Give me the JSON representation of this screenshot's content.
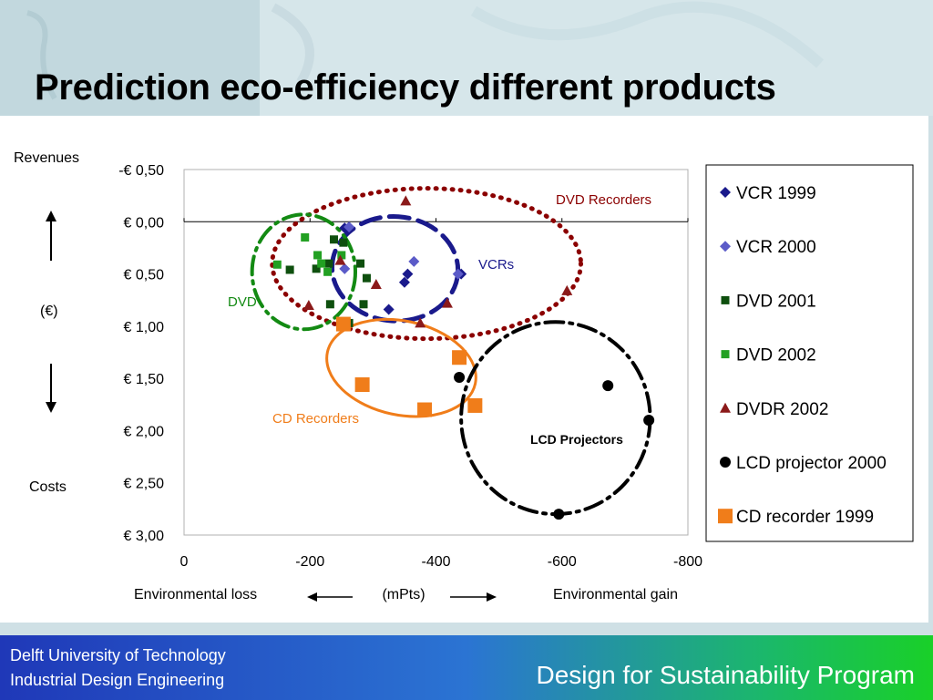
{
  "slide": {
    "title": "Prediction eco-efficiency different products"
  },
  "footer": {
    "line1": "Delft University of Technology",
    "line2": "Industrial Design Engineering",
    "program": "Design for Sustainability Program"
  },
  "colors": {
    "title_bar_bg": "#c9dde4",
    "footer_start": "#1f38b8",
    "footer_end": "#19d028",
    "dvd_recorders": "#8b0000",
    "vcrs": "#1a1a8c",
    "dvd": "#138a13",
    "cd_recorders": "#f07d1a",
    "lcd": "#000000"
  },
  "chart_data": {
    "type": "scatter",
    "ylabel_top": "Revenues",
    "ylabel_mid": "(€)",
    "ylabel_bottom": "Costs",
    "xlabel_left": "Environmental loss",
    "xlabel_mid": "(mPts)",
    "xlabel_right": "Environmental gain",
    "x_ticks": [
      0,
      -200,
      -400,
      -600,
      -800
    ],
    "x_tick_labels": [
      "0",
      "-200",
      "-400",
      "-600",
      "-800"
    ],
    "y_ticks": [
      -0.5,
      0,
      0.5,
      1.0,
      1.5,
      2.0,
      2.5,
      3.0
    ],
    "y_tick_labels": [
      "-€ 0,50",
      "€ 0,00",
      "€ 0,50",
      "€ 1,00",
      "€ 1,50",
      "€ 2,00",
      "€ 2,50",
      "€ 3,00"
    ],
    "xlim": [
      0,
      -800
    ],
    "ylim": [
      -0.5,
      3.0
    ],
    "grid": false,
    "legend_position": "right",
    "series": [
      {
        "name": "VCR 1999",
        "marker": "diamond",
        "color": "#1a1a8c",
        "points": [
          [
            -255,
            0.06
          ],
          [
            -325,
            0.84
          ],
          [
            -355,
            0.5
          ],
          [
            -440,
            0.5
          ],
          [
            -350,
            0.58
          ]
        ]
      },
      {
        "name": "VCR 2000",
        "marker": "diamond",
        "color": "#5b5bc8",
        "points": [
          [
            -262,
            0.05
          ],
          [
            -255,
            0.45
          ],
          [
            -365,
            0.38
          ],
          [
            -435,
            0.5
          ]
        ]
      },
      {
        "name": "DVD 2001",
        "marker": "square-small",
        "color": "#0e4f0e",
        "points": [
          [
            -168,
            0.46
          ],
          [
            -210,
            0.45
          ],
          [
            -230,
            0.4
          ],
          [
            -232,
            0.79
          ],
          [
            -238,
            0.17
          ],
          [
            -253,
            0.2
          ],
          [
            -262,
            0.97
          ],
          [
            -280,
            0.4
          ],
          [
            -285,
            0.79
          ],
          [
            -290,
            0.54
          ]
        ]
      },
      {
        "name": "DVD 2002",
        "marker": "square-small",
        "color": "#22a022",
        "points": [
          [
            -148,
            0.41
          ],
          [
            -192,
            0.15
          ],
          [
            -212,
            0.32
          ],
          [
            -218,
            0.4
          ],
          [
            -228,
            0.48
          ],
          [
            -250,
            0.32
          ]
        ]
      },
      {
        "name": "DVDR 2002",
        "marker": "triangle",
        "color": "#8b1a1a",
        "points": [
          [
            -198,
            0.8
          ],
          [
            -248,
            0.37
          ],
          [
            -305,
            0.6
          ],
          [
            -352,
            -0.2
          ],
          [
            -375,
            0.97
          ],
          [
            -418,
            0.78
          ],
          [
            -608,
            0.66
          ]
        ]
      },
      {
        "name": "LCD projector 2000",
        "marker": "circle",
        "color": "#000000",
        "points": [
          [
            -437,
            1.49
          ],
          [
            -673,
            1.57
          ],
          [
            -738,
            1.9
          ],
          [
            -595,
            2.8
          ]
        ]
      },
      {
        "name": "CD recorder 1999",
        "marker": "square-large",
        "color": "#f07d1a",
        "points": [
          [
            -253,
            0.98
          ],
          [
            -283,
            1.56
          ],
          [
            -382,
            1.8
          ],
          [
            -437,
            1.3
          ],
          [
            -462,
            1.76
          ]
        ]
      }
    ],
    "clusters": [
      {
        "label": "DVD Recorders",
        "color": "#8b0000",
        "style": "dotted",
        "cx": -385,
        "cy": 0.4,
        "rx": 245,
        "ry": 0.72
      },
      {
        "label": "VCRs",
        "color": "#1a1a8c",
        "style": "dashed",
        "cx": -335,
        "cy": 0.45,
        "rx": 100,
        "ry": 0.5
      },
      {
        "label": "DVD",
        "color": "#138a13",
        "style": "dash-dot",
        "cx": -190,
        "cy": 0.48,
        "rx": 82,
        "ry": 0.55
      },
      {
        "label": "CD Recorders",
        "color": "#f07d1a",
        "style": "solid",
        "cx": -345,
        "cy": 1.4,
        "rx": 120,
        "ry": 0.45
      },
      {
        "label": "LCD Projectors",
        "color": "#000000",
        "style": "dash-dot",
        "cx": -590,
        "cy": 1.88,
        "rx": 150,
        "ry": 0.92
      }
    ]
  }
}
